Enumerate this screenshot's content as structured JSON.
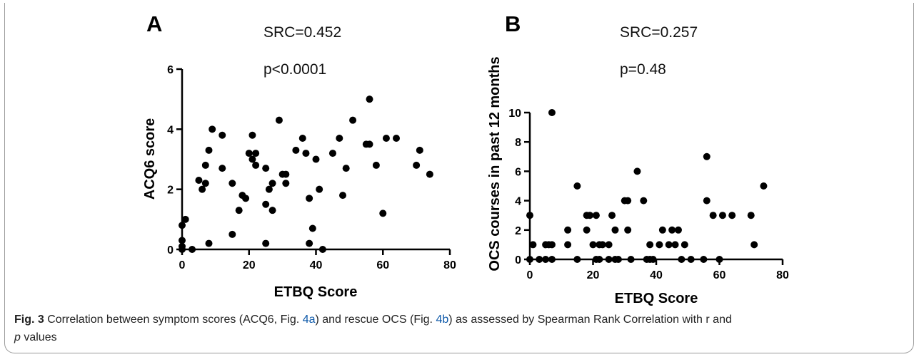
{
  "caption": {
    "label": "Fig. 3",
    "part1": " Correlation between symptom scores (ACQ6, Fig. ",
    "ref_a": "4a",
    "part2": ") and rescue OCS (Fig. ",
    "ref_b": "4b",
    "part3": ") as assessed by Spearman Rank Correlation with r and",
    "p_letter": "p",
    "part4": " values"
  },
  "chart_data": [
    {
      "panel": "A",
      "type": "scatter",
      "annotations": [
        "SRC=0.452",
        "p<0.0001"
      ],
      "xlabel": "ETBQ Score",
      "ylabel": "ACQ6 score",
      "xlim": [
        0,
        80
      ],
      "ylim": [
        0,
        6
      ],
      "xticks": [
        0,
        20,
        40,
        60,
        80
      ],
      "yticks": [
        0,
        2,
        4,
        6
      ],
      "points": [
        [
          0,
          0.8
        ],
        [
          0,
          0.3
        ],
        [
          0,
          0.1
        ],
        [
          1,
          1.0
        ],
        [
          0,
          0
        ],
        [
          3,
          0
        ],
        [
          5,
          2.3
        ],
        [
          6,
          2.0
        ],
        [
          7,
          2.8
        ],
        [
          7,
          2.2
        ],
        [
          8,
          3.3
        ],
        [
          8,
          0.2
        ],
        [
          9,
          4.0
        ],
        [
          12,
          3.8
        ],
        [
          12,
          2.7
        ],
        [
          15,
          2.2
        ],
        [
          15,
          0.5
        ],
        [
          17,
          1.3
        ],
        [
          18,
          1.8
        ],
        [
          19,
          1.7
        ],
        [
          20,
          3.2
        ],
        [
          21,
          3.8
        ],
        [
          21,
          3.0
        ],
        [
          22,
          3.2
        ],
        [
          22,
          2.8
        ],
        [
          25,
          2.7
        ],
        [
          25,
          1.5
        ],
        [
          25,
          0.2
        ],
        [
          26,
          2.0
        ],
        [
          27,
          2.2
        ],
        [
          27,
          1.3
        ],
        [
          29,
          4.3
        ],
        [
          30,
          2.5
        ],
        [
          31,
          2.5
        ],
        [
          31,
          2.2
        ],
        [
          34,
          3.3
        ],
        [
          36,
          3.7
        ],
        [
          37,
          3.2
        ],
        [
          38,
          1.7
        ],
        [
          38,
          0.2
        ],
        [
          39,
          0.7
        ],
        [
          40,
          3.0
        ],
        [
          41,
          2.0
        ],
        [
          42,
          0
        ],
        [
          45,
          3.2
        ],
        [
          47,
          3.7
        ],
        [
          48,
          1.8
        ],
        [
          49,
          2.7
        ],
        [
          51,
          4.3
        ],
        [
          55,
          3.5
        ],
        [
          56,
          3.5
        ],
        [
          56,
          5.0
        ],
        [
          58,
          2.8
        ],
        [
          60,
          1.2
        ],
        [
          61,
          3.7
        ],
        [
          64,
          3.7
        ],
        [
          70,
          2.8
        ],
        [
          71,
          3.3
        ],
        [
          74,
          2.5
        ]
      ]
    },
    {
      "panel": "B",
      "type": "scatter",
      "annotations": [
        "SRC=0.257",
        "p=0.48"
      ],
      "xlabel": "ETBQ Score",
      "ylabel": "OCS courses in past 12 months",
      "xlim": [
        0,
        80
      ],
      "ylim": [
        0,
        10
      ],
      "xticks": [
        0,
        20,
        40,
        60,
        80
      ],
      "yticks": [
        0,
        2,
        4,
        6,
        8,
        10
      ],
      "points": [
        [
          0,
          3
        ],
        [
          0,
          0
        ],
        [
          1,
          1
        ],
        [
          3,
          0
        ],
        [
          5,
          1
        ],
        [
          5,
          0
        ],
        [
          6,
          1
        ],
        [
          7,
          10
        ],
        [
          7,
          1
        ],
        [
          7,
          0
        ],
        [
          12,
          2
        ],
        [
          12,
          1
        ],
        [
          15,
          5
        ],
        [
          15,
          0
        ],
        [
          18,
          3
        ],
        [
          18,
          2
        ],
        [
          19,
          3
        ],
        [
          20,
          1
        ],
        [
          21,
          3
        ],
        [
          21,
          0
        ],
        [
          22,
          1
        ],
        [
          22,
          0
        ],
        [
          23,
          1
        ],
        [
          25,
          1
        ],
        [
          25,
          0
        ],
        [
          26,
          3
        ],
        [
          27,
          2
        ],
        [
          27,
          0
        ],
        [
          28,
          0
        ],
        [
          30,
          4
        ],
        [
          31,
          4
        ],
        [
          31,
          2
        ],
        [
          32,
          0
        ],
        [
          34,
          6
        ],
        [
          36,
          4
        ],
        [
          37,
          0
        ],
        [
          38,
          1
        ],
        [
          38,
          0
        ],
        [
          39,
          0
        ],
        [
          41,
          1
        ],
        [
          42,
          2
        ],
        [
          44,
          1
        ],
        [
          45,
          2
        ],
        [
          46,
          1
        ],
        [
          47,
          2
        ],
        [
          48,
          0
        ],
        [
          49,
          1
        ],
        [
          51,
          0
        ],
        [
          55,
          0
        ],
        [
          56,
          7
        ],
        [
          56,
          4
        ],
        [
          58,
          3
        ],
        [
          60,
          0
        ],
        [
          61,
          3
        ],
        [
          64,
          3
        ],
        [
          70,
          3
        ],
        [
          71,
          1
        ],
        [
          74,
          5
        ]
      ]
    }
  ]
}
